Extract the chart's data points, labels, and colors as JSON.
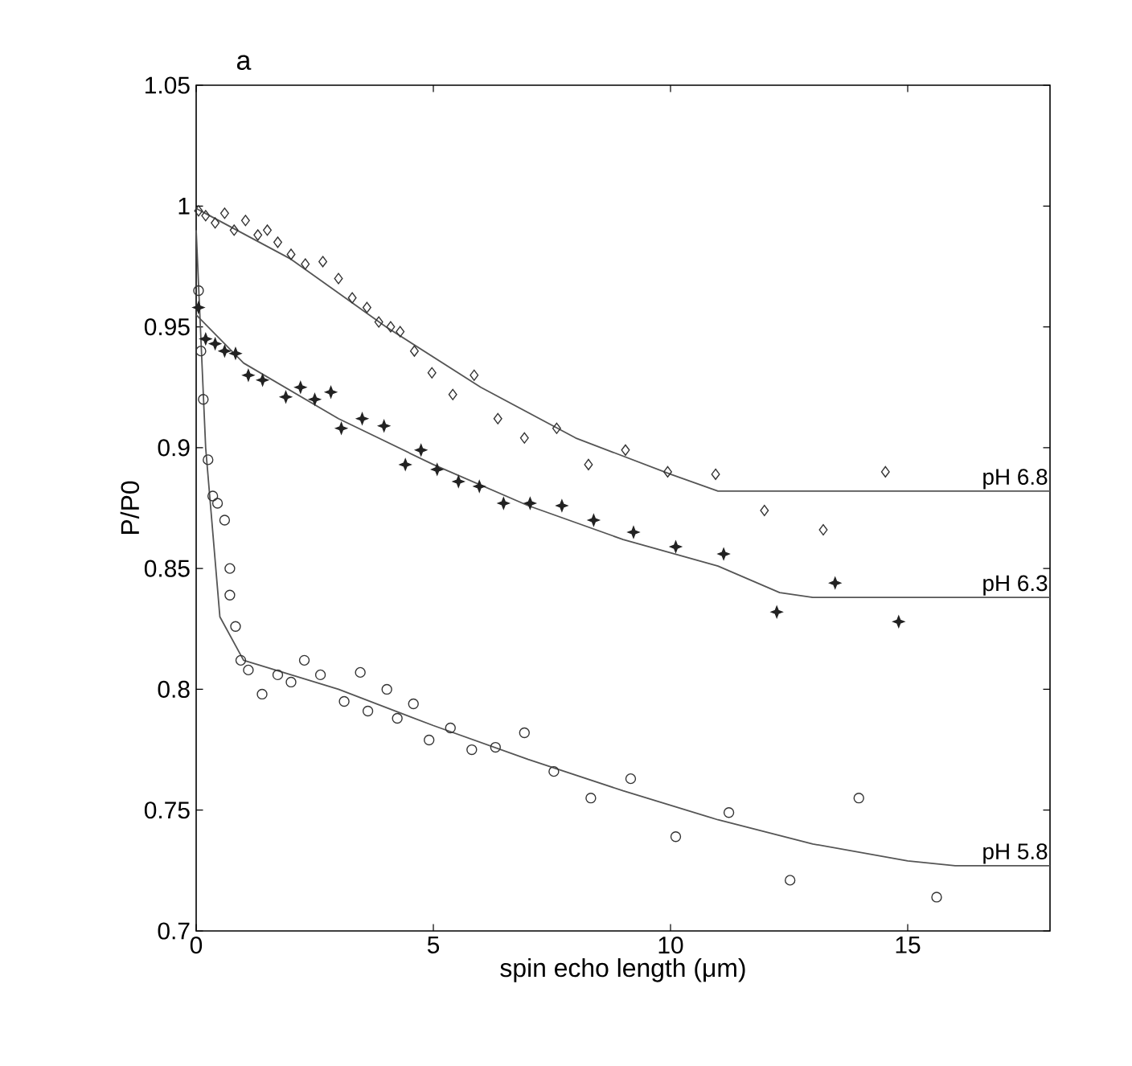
{
  "chart_data": {
    "type": "scatter",
    "title": "a",
    "xlabel": "spin echo length (μm)",
    "ylabel": "P/P0",
    "xlim": [
      0,
      18
    ],
    "ylim": [
      0.7,
      1.05
    ],
    "xticks": [
      0,
      5,
      10,
      15
    ],
    "yticks": [
      0.7,
      0.75,
      0.8,
      0.85,
      0.9,
      0.95,
      1,
      1.05
    ],
    "grid": false,
    "series": [
      {
        "marker": "diamond",
        "color": "#333333",
        "x": [
          0.05,
          0.2,
          0.4,
          0.6,
          0.8,
          1.04,
          1.3,
          1.5,
          1.72,
          2.0,
          2.3,
          2.67,
          3.0,
          3.29,
          3.6,
          3.85,
          4.1,
          4.3,
          4.6,
          4.97,
          5.41,
          5.86,
          6.36,
          6.92,
          7.6,
          8.27,
          9.05,
          9.94,
          10.95,
          11.98,
          13.22,
          14.53
        ],
        "values": [
          0.998,
          0.996,
          0.993,
          0.997,
          0.99,
          0.994,
          0.988,
          0.99,
          0.985,
          0.98,
          0.976,
          0.977,
          0.97,
          0.962,
          0.958,
          0.952,
          0.95,
          0.948,
          0.94,
          0.931,
          0.922,
          0.93,
          0.912,
          0.904,
          0.908,
          0.893,
          0.899,
          0.89,
          0.889,
          0.874,
          0.866,
          0.89
        ]
      },
      {
        "marker": "star",
        "color": "#222222",
        "x": [
          0.05,
          0.2,
          0.4,
          0.6,
          0.83,
          1.1,
          1.4,
          1.89,
          2.2,
          2.5,
          2.84,
          3.06,
          3.5,
          3.96,
          4.41,
          4.74,
          5.08,
          5.53,
          5.97,
          6.48,
          7.04,
          7.71,
          8.38,
          9.22,
          10.11,
          11.12,
          12.24,
          13.47,
          14.81
        ],
        "values": [
          0.958,
          0.945,
          0.943,
          0.94,
          0.939,
          0.93,
          0.928,
          0.921,
          0.925,
          0.92,
          0.923,
          0.908,
          0.912,
          0.909,
          0.893,
          0.899,
          0.891,
          0.886,
          0.884,
          0.877,
          0.877,
          0.876,
          0.87,
          0.865,
          0.859,
          0.856,
          0.832,
          0.844,
          0.828
        ]
      },
      {
        "marker": "circle",
        "color": "#333333",
        "x": [
          0.05,
          0.1,
          0.15,
          0.25,
          0.35,
          0.45,
          0.6,
          0.71,
          0.71,
          0.83,
          0.94,
          1.1,
          1.39,
          1.72,
          2.0,
          2.28,
          2.62,
          3.12,
          3.46,
          3.62,
          4.02,
          4.24,
          4.58,
          4.91,
          5.36,
          5.81,
          6.31,
          6.92,
          7.54,
          8.32,
          9.16,
          10.11,
          11.23,
          12.52,
          13.97,
          15.61
        ],
        "values": [
          0.965,
          0.94,
          0.92,
          0.895,
          0.88,
          0.877,
          0.87,
          0.85,
          0.839,
          0.826,
          0.812,
          0.808,
          0.798,
          0.806,
          0.803,
          0.812,
          0.806,
          0.795,
          0.807,
          0.791,
          0.8,
          0.788,
          0.794,
          0.779,
          0.784,
          0.775,
          0.776,
          0.782,
          0.766,
          0.755,
          0.763,
          0.739,
          0.749,
          0.721,
          0.755,
          0.714
        ]
      },
      {
        "type": "line",
        "name": "pH 6.8",
        "color": "#555555",
        "line_style": "solid",
        "x": [
          0,
          2,
          4,
          6,
          8,
          10,
          11,
          18
        ],
        "values": [
          0.999,
          0.978,
          0.95,
          0.925,
          0.904,
          0.889,
          0.882,
          0.882
        ]
      },
      {
        "type": "line",
        "name": "pH 6.3",
        "color": "#555555",
        "line_style": "solid",
        "x": [
          0,
          1,
          3,
          5,
          7,
          9,
          11,
          12.3,
          13,
          18
        ],
        "values": [
          0.955,
          0.935,
          0.912,
          0.893,
          0.876,
          0.862,
          0.851,
          0.84,
          0.838,
          0.838
        ]
      },
      {
        "type": "line",
        "name": "pH 5.8",
        "color": "#555555",
        "line_style": "solid",
        "x": [
          0,
          0.2,
          0.5,
          1,
          3,
          5,
          7,
          9,
          11,
          13,
          15,
          16,
          18
        ],
        "values": [
          0.99,
          0.9,
          0.83,
          0.812,
          0.8,
          0.785,
          0.771,
          0.758,
          0.746,
          0.736,
          0.729,
          0.727,
          0.727
        ]
      }
    ]
  }
}
